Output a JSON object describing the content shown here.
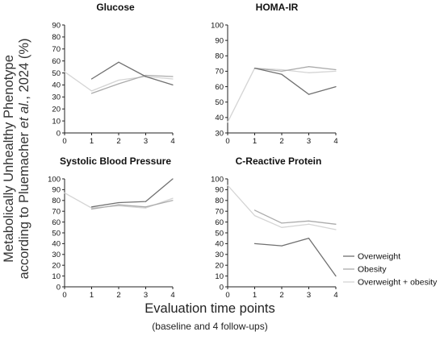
{
  "figure": {
    "y_title_line1": "Metabolically Unhealthy Phenotype",
    "y_title_line2_prefix": "according to Pluemacher ",
    "y_title_line2_italic": "et al.",
    "y_title_line2_suffix": ", 2024 (%)",
    "x_title": "Evaluation time points",
    "x_subtitle": "(baseline and 4 follow-ups)"
  },
  "colors": {
    "Overweight": "#707070",
    "Obesity": "#ababab",
    "Overweight + obesity": "#d4d4d4"
  },
  "legend": {
    "placement": "right of C-Reactive Protein panel",
    "entries": [
      "Overweight",
      "Obesity",
      "Overweight + obesity"
    ]
  },
  "chart_data": [
    {
      "type": "line",
      "title": "Glucose",
      "x": [
        0,
        1,
        2,
        3,
        4
      ],
      "ylim": [
        0,
        90
      ],
      "yticks": [
        0,
        10,
        20,
        30,
        40,
        50,
        60,
        70,
        80,
        90
      ],
      "series": [
        {
          "name": "Overweight",
          "values": [
            null,
            45,
            59,
            47,
            40
          ]
        },
        {
          "name": "Obesity",
          "values": [
            null,
            33,
            41,
            48,
            47
          ]
        },
        {
          "name": "Overweight + obesity",
          "values": [
            51,
            35,
            44,
            47,
            45
          ]
        }
      ]
    },
    {
      "type": "line",
      "title": "HOMA-IR",
      "x": [
        0,
        1,
        2,
        3,
        4
      ],
      "ylim": [
        30,
        100
      ],
      "yticks": [
        30,
        40,
        50,
        60,
        70,
        80,
        90,
        100
      ],
      "series": [
        {
          "name": "Overweight",
          "values": [
            null,
            72,
            68,
            55,
            60
          ]
        },
        {
          "name": "Obesity",
          "values": [
            null,
            72,
            70,
            73,
            71
          ]
        },
        {
          "name": "Overweight + obesity",
          "values": [
            37,
            72,
            71,
            69,
            70
          ]
        }
      ]
    },
    {
      "type": "line",
      "title": "Systolic Blood Pressure",
      "x": [
        0,
        1,
        2,
        3,
        4
      ],
      "ylim": [
        0,
        100
      ],
      "yticks": [
        0,
        10,
        20,
        30,
        40,
        50,
        60,
        70,
        80,
        90,
        100
      ],
      "series": [
        {
          "name": "Overweight",
          "values": [
            null,
            74,
            78,
            79,
            100
          ]
        },
        {
          "name": "Obesity",
          "values": [
            null,
            72,
            76,
            74,
            80
          ]
        },
        {
          "name": "Overweight + obesity",
          "values": [
            87,
            73,
            75,
            73,
            82
          ]
        }
      ]
    },
    {
      "type": "line",
      "title": "C-Reactive Protein",
      "x": [
        0,
        1,
        2,
        3,
        4
      ],
      "ylim": [
        0,
        100
      ],
      "yticks": [
        0,
        10,
        20,
        30,
        40,
        50,
        60,
        70,
        80,
        90,
        100
      ],
      "series": [
        {
          "name": "Overweight",
          "values": [
            null,
            40,
            38,
            45,
            10
          ]
        },
        {
          "name": "Obesity",
          "values": [
            null,
            71,
            59,
            61,
            58
          ]
        },
        {
          "name": "Overweight + obesity",
          "values": [
            94,
            66,
            55,
            58,
            53
          ]
        }
      ]
    }
  ]
}
